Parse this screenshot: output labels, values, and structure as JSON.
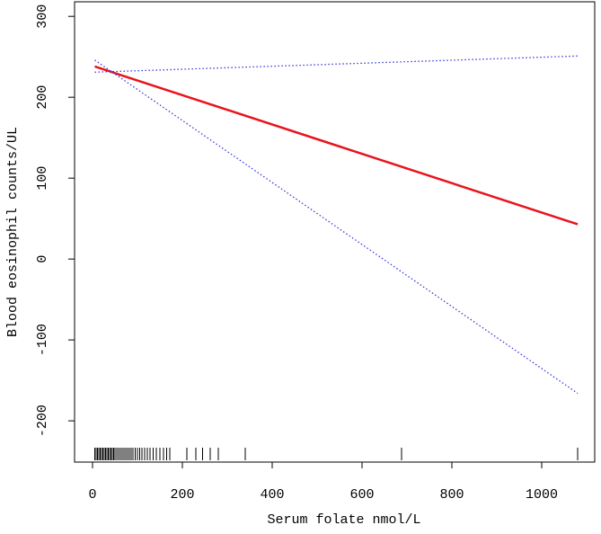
{
  "chart_data": {
    "type": "line",
    "xlabel": "Serum folate nmol/L",
    "ylabel": "Blood eosinophil counts/UL",
    "x": [
      5,
      1080
    ],
    "series": [
      {
        "color": "#e8141c",
        "style": "solid",
        "values": [
          238,
          43
        ]
      },
      {
        "color": "#3a3adb",
        "style": "dotted",
        "values": [
          231,
          251
        ]
      },
      {
        "color": "#3a3adb",
        "style": "dotted",
        "values": [
          246,
          -166
        ]
      }
    ],
    "rug": [
      5,
      8,
      11,
      14,
      17,
      20,
      23,
      26,
      29,
      32,
      35,
      38,
      41,
      44,
      47,
      50,
      54,
      58,
      62,
      66,
      70,
      74,
      78,
      82,
      86,
      90,
      95,
      100,
      105,
      110,
      116,
      122,
      128,
      135,
      142,
      150,
      158,
      165,
      172,
      210,
      230,
      245,
      262,
      280,
      340,
      688,
      1080
    ],
    "xlim": [
      -40,
      1118
    ],
    "ylim": [
      -251,
      318
    ],
    "xticks": [
      0,
      200,
      400,
      600,
      800,
      1000
    ],
    "yticks": [
      -200,
      -100,
      0,
      100,
      200,
      300
    ]
  }
}
